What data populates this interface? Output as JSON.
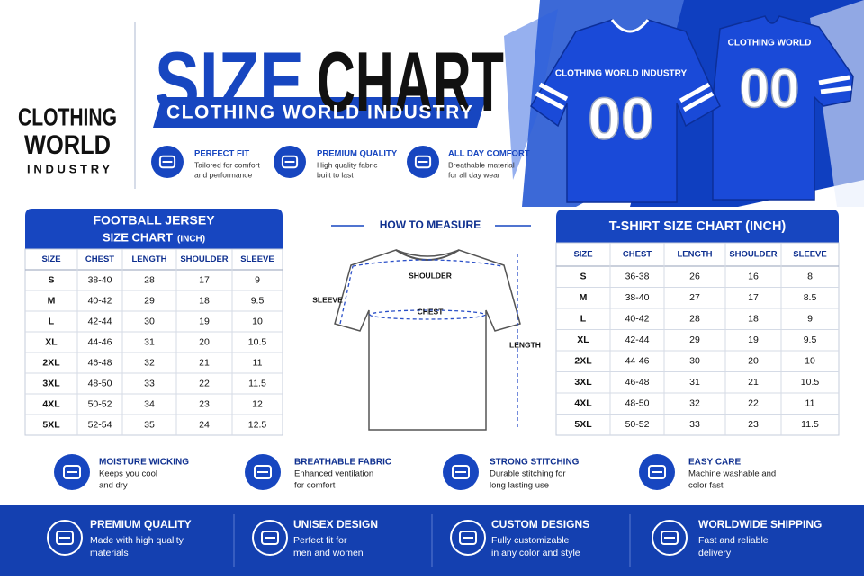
{
  "brand": {
    "line1": "CLOTHING",
    "line2": "WORLD",
    "line3": "INDUSTRY"
  },
  "header": {
    "title_part1": "SIZE",
    "title_part2": "CHART",
    "subtitle": "CLOTHING WORLD INDUSTRY"
  },
  "features": [
    {
      "title": "PERFECT FIT",
      "lines": [
        "Tailored for comfort",
        "and performance"
      ]
    },
    {
      "title": "PREMIUM QUALITY",
      "lines": [
        "High quality fabric",
        "built to last"
      ]
    },
    {
      "title": "ALL DAY COMFORT",
      "lines": [
        "Breathable material",
        "for all day wear"
      ]
    }
  ],
  "jersey": {
    "front_text": "CLOTHING WORLD INDUSTRY",
    "front_number": "00",
    "back_text": "CLOTHING WORLD",
    "back_number": "00"
  },
  "football_table": {
    "title": "FOOTBALL JERSEY",
    "subtitle": "SIZE CHART",
    "unit": "(INCH)",
    "columns": [
      "SIZE",
      "CHEST",
      "LENGTH",
      "SHOULDER",
      "SLEEVE"
    ],
    "rows": [
      [
        "S",
        "38-40",
        "28",
        "17",
        "9"
      ],
      [
        "M",
        "40-42",
        "29",
        "18",
        "9.5"
      ],
      [
        "L",
        "42-44",
        "30",
        "19",
        "10"
      ],
      [
        "XL",
        "44-46",
        "31",
        "20",
        "10.5"
      ],
      [
        "2XL",
        "46-48",
        "32",
        "21",
        "11"
      ],
      [
        "3XL",
        "48-50",
        "33",
        "22",
        "11.5"
      ],
      [
        "4XL",
        "50-52",
        "34",
        "23",
        "12"
      ],
      [
        "5XL",
        "52-54",
        "35",
        "24",
        "12.5"
      ]
    ]
  },
  "measure": {
    "title": "HOW TO MEASURE",
    "shoulder": "SHOULDER",
    "chest": "CHEST",
    "sleeve": "SLEEVE",
    "length": "LENGTH"
  },
  "tshirt_table": {
    "title": "T-SHIRT SIZE CHART (INCH)",
    "columns": [
      "SIZE",
      "CHEST",
      "LENGTH",
      "SHOULDER",
      "SLEEVE"
    ],
    "rows": [
      [
        "S",
        "36-38",
        "26",
        "16",
        "8"
      ],
      [
        "M",
        "38-40",
        "27",
        "17",
        "8.5"
      ],
      [
        "L",
        "40-42",
        "28",
        "18",
        "9"
      ],
      [
        "XL",
        "42-44",
        "29",
        "19",
        "9.5"
      ],
      [
        "2XL",
        "44-46",
        "30",
        "20",
        "10"
      ],
      [
        "3XL",
        "46-48",
        "31",
        "21",
        "10.5"
      ],
      [
        "4XL",
        "48-50",
        "32",
        "22",
        "11"
      ],
      [
        "5XL",
        "50-52",
        "33",
        "23",
        "11.5"
      ]
    ]
  },
  "benefits": [
    {
      "title": "MOISTURE WICKING",
      "lines": [
        "Keeps you cool",
        "and dry"
      ]
    },
    {
      "title": "BREATHABLE FABRIC",
      "lines": [
        "Enhanced ventilation",
        "for comfort"
      ]
    },
    {
      "title": "STRONG STITCHING",
      "lines": [
        "Durable stitching for",
        "long lasting use"
      ]
    },
    {
      "title": "EASY CARE",
      "lines": [
        "Machine washable and",
        "color fast"
      ]
    }
  ],
  "footer": [
    {
      "title": "PREMIUM QUALITY",
      "lines": [
        "Made with high quality",
        "materials"
      ]
    },
    {
      "title": "UNISEX DESIGN",
      "lines": [
        "Perfect fit for",
        "men and women"
      ]
    },
    {
      "title": "CUSTOM DESIGNS",
      "lines": [
        "Fully customizable",
        "in any color and style"
      ]
    },
    {
      "title": "WORLDWIDE SHIPPING",
      "lines": [
        "Fast and reliable",
        "delivery"
      ]
    }
  ]
}
